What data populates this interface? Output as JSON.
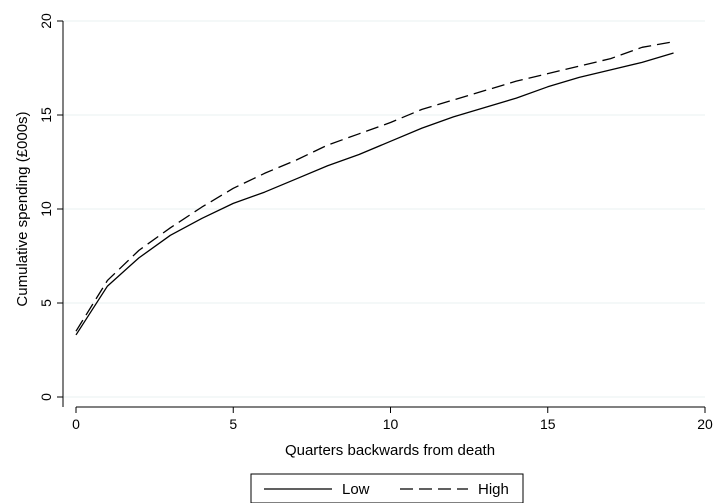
{
  "chart_data": {
    "type": "line",
    "title": "",
    "xlabel": "Quarters backwards from death",
    "ylabel": "Cumulative spending (£000s)",
    "xlim": [
      0,
      20
    ],
    "ylim": [
      0,
      20
    ],
    "xticks": [
      "0",
      "5",
      "10",
      "15",
      "20"
    ],
    "yticks": [
      "0",
      "5",
      "10",
      "15",
      "20"
    ],
    "grid": true,
    "legend_position": "bottom-center",
    "x": [
      0,
      1,
      2,
      3,
      4,
      5,
      6,
      7,
      8,
      9,
      10,
      11,
      12,
      13,
      14,
      15,
      16,
      17,
      18,
      19
    ],
    "series": [
      {
        "name": "Low",
        "style": "solid",
        "color": "#000000",
        "values": [
          3.3,
          5.9,
          7.4,
          8.6,
          9.5,
          10.3,
          10.9,
          11.6,
          12.3,
          12.9,
          13.6,
          14.3,
          14.9,
          15.4,
          15.9,
          16.5,
          17.0,
          17.4,
          17.8,
          18.3
        ]
      },
      {
        "name": "High",
        "style": "dashed",
        "color": "#000000",
        "values": [
          3.5,
          6.2,
          7.8,
          9.0,
          10.1,
          11.1,
          11.9,
          12.6,
          13.4,
          14.0,
          14.6,
          15.3,
          15.8,
          16.3,
          16.8,
          17.2,
          17.6,
          18.0,
          18.6,
          18.9
        ]
      }
    ]
  }
}
